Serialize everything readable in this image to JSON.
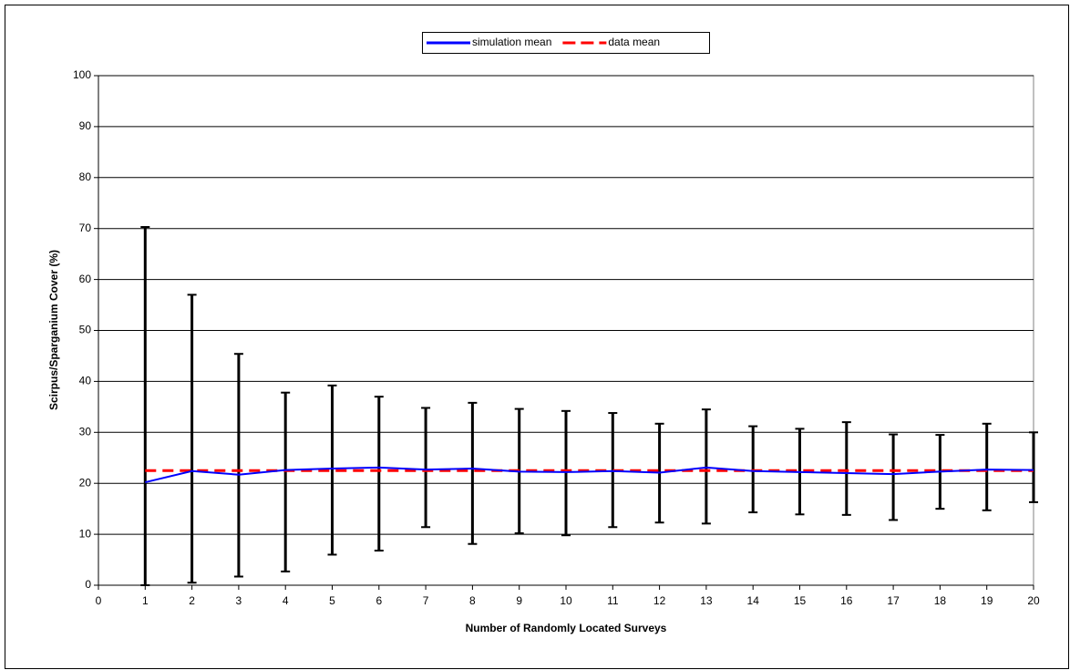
{
  "chart_data": {
    "type": "line",
    "x_label": "Number of Randomly Located Surveys",
    "y_label": "Scirpus/Sparganium Cover (%)",
    "x": [
      1,
      2,
      3,
      4,
      5,
      6,
      7,
      8,
      9,
      10,
      11,
      12,
      13,
      14,
      15,
      16,
      17,
      18,
      19,
      20
    ],
    "series": [
      {
        "name": "simulation mean",
        "color": "#0000ff",
        "style": "solid",
        "values": [
          20.2,
          22.4,
          21.7,
          22.6,
          22.9,
          23.1,
          22.7,
          22.9,
          22.3,
          22.2,
          22.4,
          22.1,
          23.1,
          22.4,
          22.2,
          22.0,
          21.8,
          22.3,
          22.7,
          22.6
        ],
        "err_low": [
          0,
          0.5,
          1.7,
          2.7,
          6.0,
          6.8,
          11.4,
          8.1,
          10.2,
          9.8,
          11.4,
          12.3,
          12.1,
          14.3,
          13.9,
          13.8,
          12.8,
          15.0,
          14.7,
          16.3
        ],
        "err_high": [
          70.3,
          57.0,
          45.4,
          37.8,
          39.2,
          37.0,
          34.8,
          35.8,
          34.6,
          34.2,
          33.8,
          31.7,
          34.5,
          31.2,
          30.7,
          32.0,
          29.6,
          29.5,
          31.7,
          30.0
        ],
        "err_color": "#000000"
      },
      {
        "name": "data mean",
        "color": "#ff0000",
        "style": "dashed",
        "values": [
          22.5,
          22.5,
          22.5,
          22.5,
          22.5,
          22.5,
          22.5,
          22.5,
          22.5,
          22.5,
          22.5,
          22.5,
          22.5,
          22.5,
          22.5,
          22.5,
          22.5,
          22.5,
          22.5,
          22.5
        ]
      }
    ],
    "xlim": [
      0,
      20
    ],
    "xticks": [
      0,
      1,
      2,
      3,
      4,
      5,
      6,
      7,
      8,
      9,
      10,
      11,
      12,
      13,
      14,
      15,
      16,
      17,
      18,
      19,
      20
    ],
    "ylim": [
      0,
      100
    ],
    "yticks": [
      0,
      10,
      20,
      30,
      40,
      50,
      60,
      70,
      80,
      90,
      100
    ],
    "grid": true,
    "legend": "top"
  }
}
